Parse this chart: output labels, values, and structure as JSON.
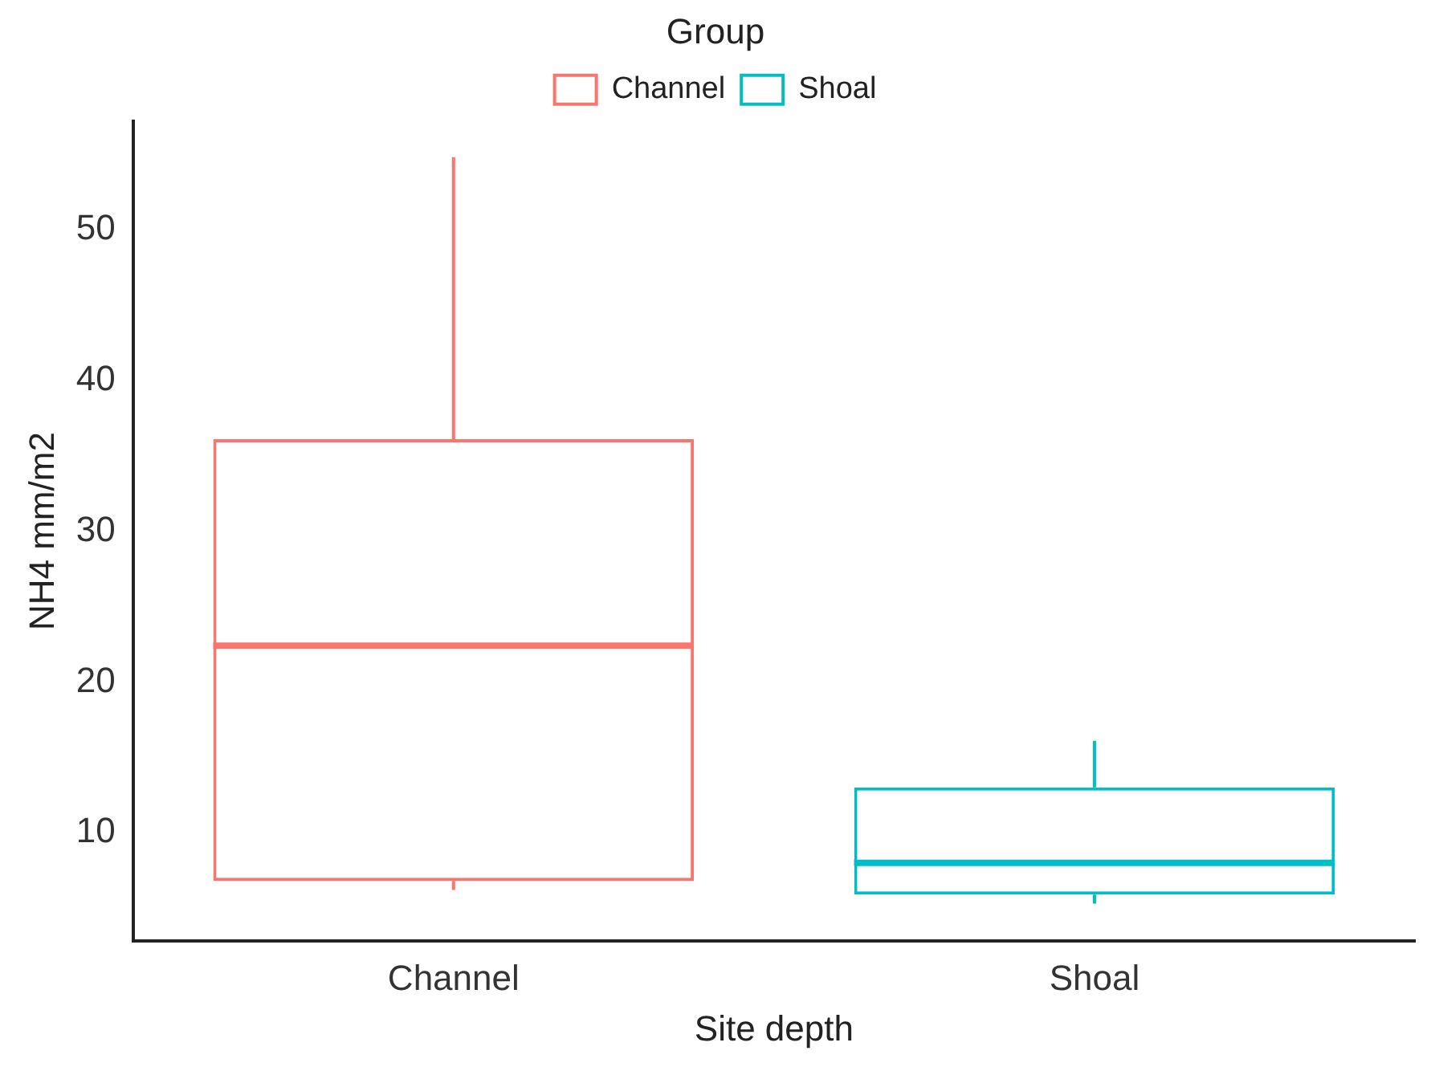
{
  "chart_data": {
    "type": "box",
    "xlabel": "Site depth",
    "ylabel": "NH4 mm/m2",
    "legend_title": "Group",
    "legend": "top",
    "grid": false,
    "categories": [
      "Channel",
      "Shoal"
    ],
    "series": [
      {
        "name": "Channel",
        "color": "#f8766d",
        "boxes": [
          {
            "low": 6.2,
            "q1": 6.8,
            "median": 22.4,
            "q3": 36.1,
            "high": 54.8
          },
          null
        ]
      },
      {
        "name": "Shoal",
        "color": "#00bfc4",
        "boxes": [
          null,
          {
            "low": 5.3,
            "q1": 5.9,
            "median": 8.0,
            "q3": 13.0,
            "high": 16.1
          }
        ]
      }
    ],
    "ylim": [
      2.8,
      57.2
    ],
    "yticks": [
      10,
      20,
      30,
      40,
      50
    ]
  }
}
